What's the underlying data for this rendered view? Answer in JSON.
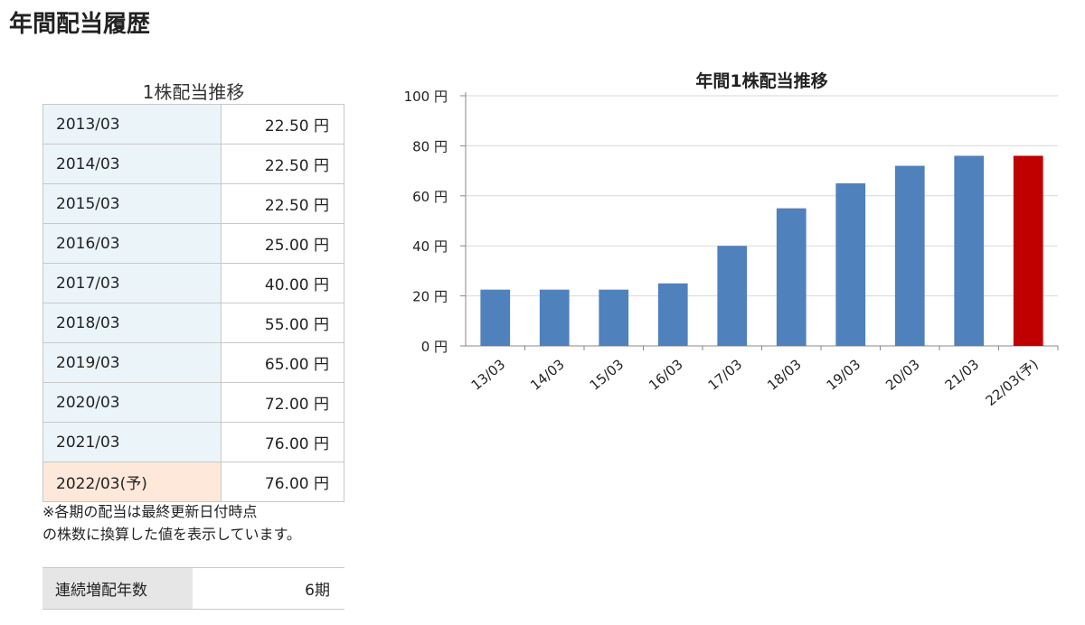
{
  "page": {
    "title": "年間配当履歴"
  },
  "table": {
    "caption": "1株配当推移",
    "rows": [
      {
        "period": "2013/03",
        "amount": "22.50 円"
      },
      {
        "period": "2014/03",
        "amount": "22.50 円"
      },
      {
        "period": "2015/03",
        "amount": "22.50 円"
      },
      {
        "period": "2016/03",
        "amount": "25.00 円"
      },
      {
        "period": "2017/03",
        "amount": "40.00 円"
      },
      {
        "period": "2018/03",
        "amount": "55.00 円"
      },
      {
        "period": "2019/03",
        "amount": "65.00 円"
      },
      {
        "period": "2020/03",
        "amount": "72.00 円"
      },
      {
        "period": "2021/03",
        "amount": "76.00 円"
      },
      {
        "period": "2022/03(予)",
        "amount": "76.00 円"
      }
    ],
    "forecast_row_bg": "#fde8da",
    "normal_row_bg": "#ebf5f9"
  },
  "note": {
    "line1": "※各期の配当は最終更新日付時点",
    "line2": "の株数に換算した値を表示しています。"
  },
  "streak": {
    "label": "連続増配年数",
    "value": "6期"
  },
  "chart_data": {
    "type": "bar",
    "title": "年間1株配当推移",
    "categories": [
      "13/03",
      "14/03",
      "15/03",
      "16/03",
      "17/03",
      "18/03",
      "19/03",
      "20/03",
      "21/03",
      "22/03(予)"
    ],
    "values": [
      22.5,
      22.5,
      22.5,
      25,
      40,
      55,
      65,
      72,
      76,
      76
    ],
    "forecast_index": 9,
    "ylim": [
      0,
      100
    ],
    "yticks": [
      0,
      20,
      40,
      60,
      80,
      100
    ],
    "ytick_labels": [
      "0 円",
      "20 円",
      "40 円",
      "60 円",
      "80 円",
      "100 円"
    ],
    "grid": true,
    "colors": {
      "actual": "#4f81bd",
      "forecast": "#c00000",
      "grid": "#d9d9d9",
      "axis": "#888888"
    },
    "xlabel": "",
    "ylabel": ""
  }
}
